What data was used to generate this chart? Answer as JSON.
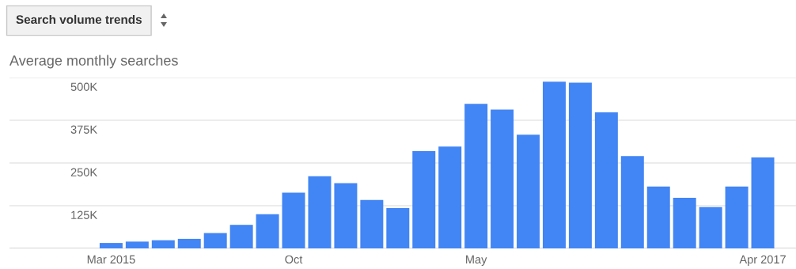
{
  "chart_data": {
    "type": "bar",
    "title": "Search volume trends",
    "subtitle": "Average monthly searches",
    "categories": [
      "Mar 2015",
      null,
      null,
      null,
      null,
      null,
      null,
      "Oct",
      null,
      null,
      null,
      null,
      null,
      null,
      "May",
      null,
      null,
      null,
      null,
      null,
      null,
      null,
      null,
      null,
      null,
      "Apr 2017"
    ],
    "values": [
      16000,
      20000,
      24000,
      28000,
      45000,
      69000,
      100000,
      163000,
      211000,
      191000,
      142000,
      118000,
      285000,
      298000,
      423000,
      406000,
      333000,
      488000,
      485000,
      398000,
      270000,
      181000,
      148000,
      121000,
      181000,
      266000
    ],
    "color": "#4285f4",
    "ylim": [
      0,
      500000
    ],
    "yticks": [
      {
        "value": 0,
        "label": null
      },
      {
        "value": 125000,
        "label": "125K"
      },
      {
        "value": 250000,
        "label": "250K"
      },
      {
        "value": 375000,
        "label": "375K"
      },
      {
        "value": 500000,
        "label": "500K"
      }
    ],
    "grid": "y",
    "legend": false
  }
}
